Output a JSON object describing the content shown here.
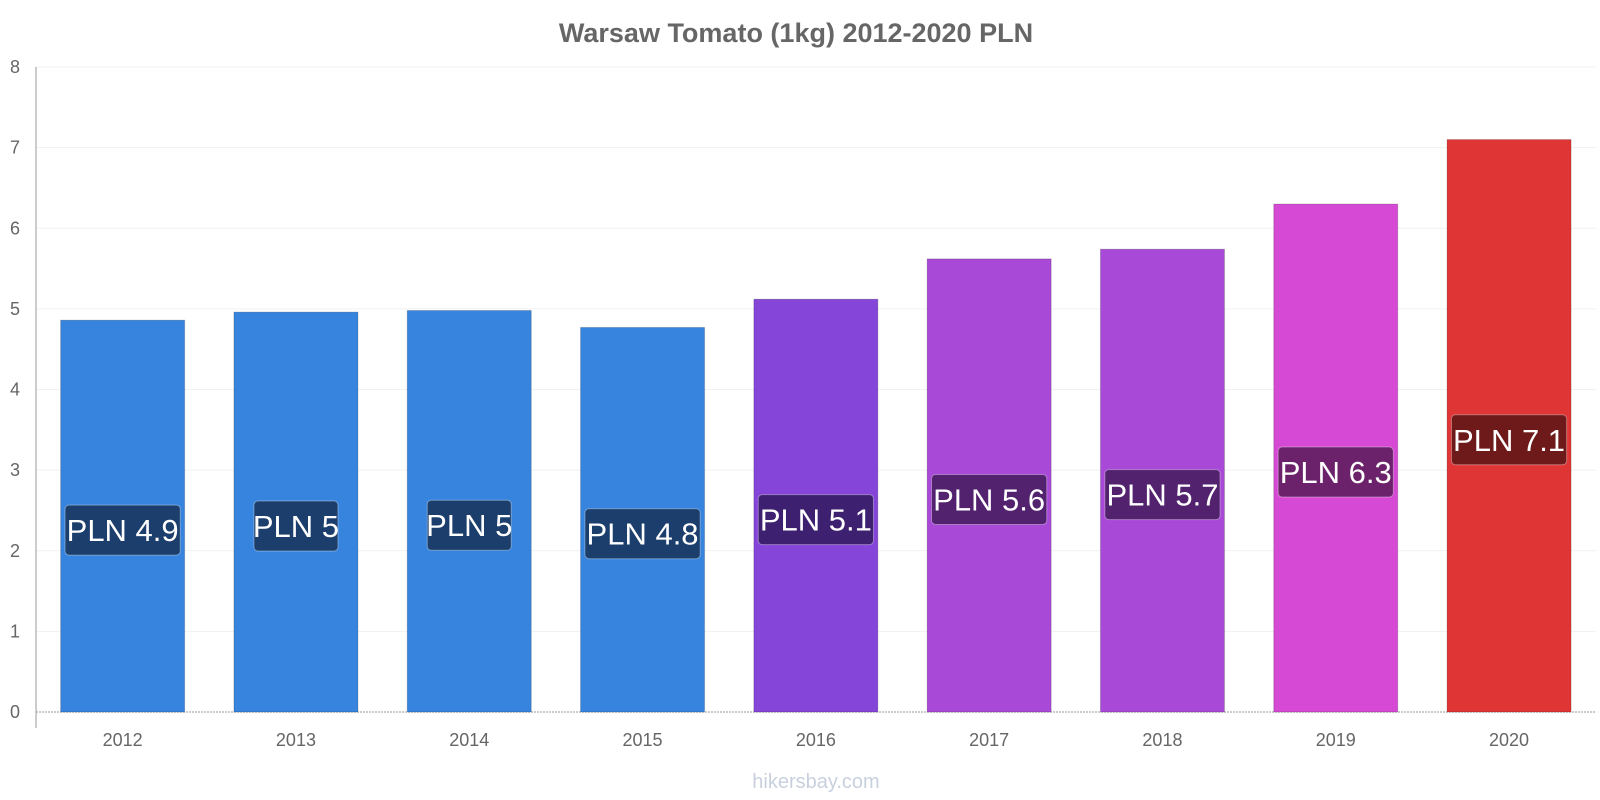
{
  "chart_data": {
    "type": "bar",
    "title": "Warsaw Tomato (1kg) 2012-2020 PLN",
    "xlabel": "",
    "ylabel": "",
    "ylim": [
      0,
      8
    ],
    "yticks": [
      "0",
      "1",
      "2",
      "3",
      "4",
      "5",
      "6",
      "7",
      "8"
    ],
    "grid": true,
    "legend": "none",
    "categories": [
      "2012",
      "2013",
      "2014",
      "2015",
      "2016",
      "2017",
      "2018",
      "2019",
      "2020"
    ],
    "values": [
      4.86,
      4.96,
      4.98,
      4.77,
      5.12,
      5.62,
      5.74,
      6.3,
      7.1
    ],
    "data_labels": [
      "PLN 4.9",
      "PLN 5",
      "PLN 5",
      "PLN 4.8",
      "PLN 5.1",
      "PLN 5.6",
      "PLN 5.7",
      "PLN 6.3",
      "PLN 7.1"
    ],
    "bar_colors": [
      "#3784de",
      "#3784de",
      "#3784de",
      "#3784de",
      "#8445d8",
      "#a949d8",
      "#a949d8",
      "#d649d4",
      "#e03535"
    ],
    "label_colors": [
      "#1b3e6c",
      "#1b3e6c",
      "#1b3e6c",
      "#1b3e6c",
      "#3d2070",
      "#52226e",
      "#52226e",
      "#6b226a",
      "#6e1a1a"
    ]
  },
  "watermark": "hikersbay.com"
}
